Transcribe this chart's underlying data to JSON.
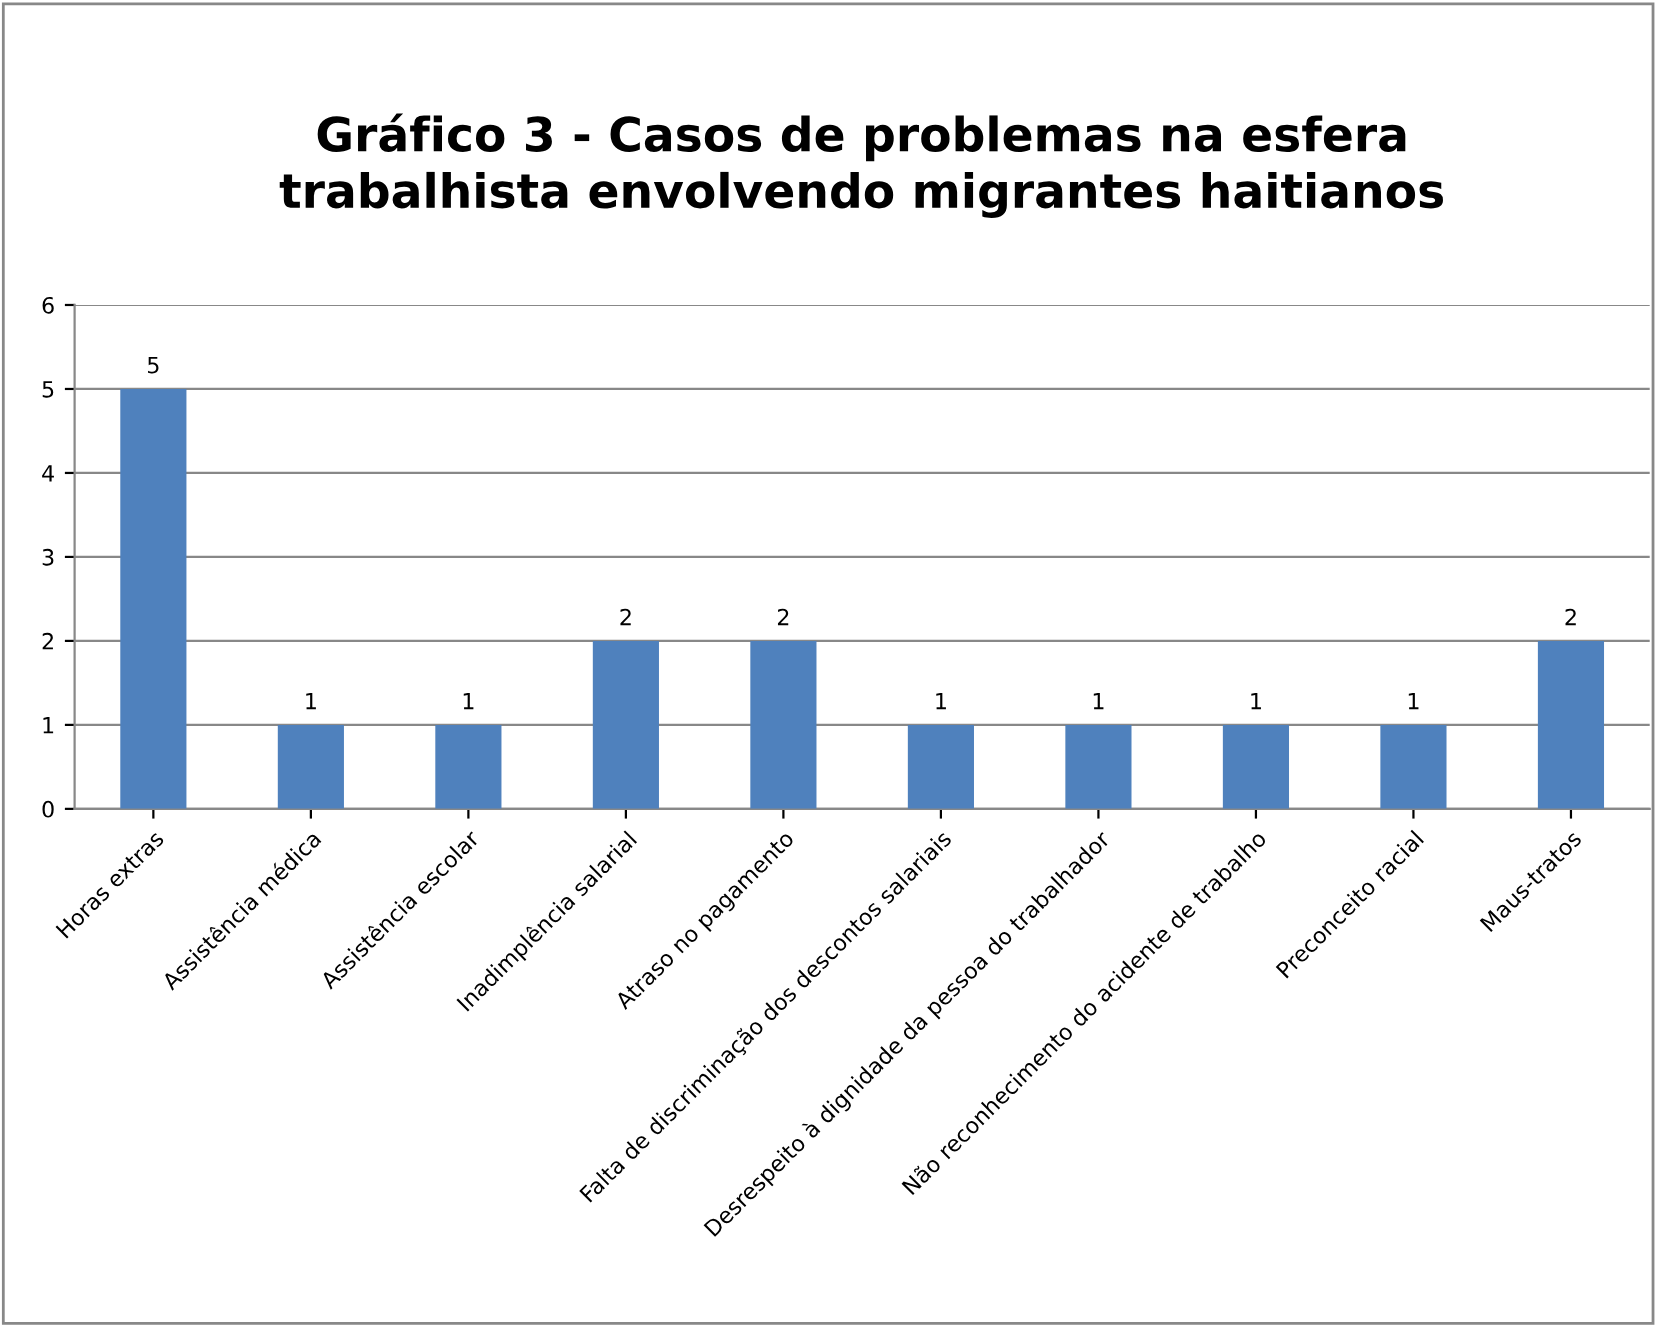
{
  "chart_data": {
    "type": "bar",
    "title": "Gráfico 3 - Casos de problemas na esfera\ntrabalhista envolvendo migrantes haitianos",
    "categories": [
      "Horas extras",
      "Assistência médica",
      "Assistência escolar",
      "Inadimplência salarial",
      "Atraso no pagamento",
      "Falta de discriminação dos descontos salariais",
      "Desrespeito à dignidade da pessoa do trabalhador",
      "Não reconhecimento do acidente de trabalho",
      "Preconceito racial",
      "Maus-tratos"
    ],
    "values": [
      5,
      1,
      1,
      2,
      2,
      1,
      1,
      1,
      1,
      2
    ],
    "color": "#4f81bd",
    "ylim": [
      0,
      6
    ],
    "yticks": [
      0,
      1,
      2,
      3,
      4,
      5,
      6
    ],
    "grid": "y",
    "data_labels": true
  }
}
